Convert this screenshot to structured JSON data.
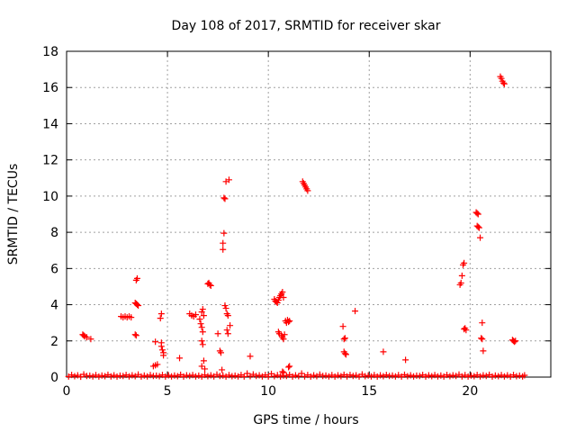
{
  "chart_data": {
    "type": "scatter",
    "title": "Day 108 of 2017, SRMTID for receiver skar",
    "xlabel": "GPS time / hours",
    "ylabel": "SRMTID / TECUs",
    "xlim": [
      0,
      24
    ],
    "ylim": [
      0,
      18
    ],
    "xticks": [
      0,
      5,
      10,
      15,
      20
    ],
    "yticks": [
      0,
      2,
      4,
      6,
      8,
      10,
      12,
      14,
      16,
      18
    ],
    "grid": true,
    "legend": "none",
    "marker": "plus",
    "color": "#ff0000",
    "series": [
      {
        "points": [
          [
            0.1,
            0.03
          ],
          [
            0.4,
            0.05
          ],
          [
            0.7,
            0.02
          ],
          [
            1.0,
            0.06
          ],
          [
            1.3,
            0.04
          ],
          [
            1.6,
            0.03
          ],
          [
            1.9,
            0.05
          ],
          [
            2.2,
            0.04
          ],
          [
            2.5,
            0.03
          ],
          [
            2.8,
            0.06
          ],
          [
            3.1,
            0.04
          ],
          [
            3.4,
            0.05
          ],
          [
            3.7,
            0.03
          ],
          [
            4.0,
            0.04
          ],
          [
            4.3,
            0.06
          ],
          [
            4.6,
            0.05
          ],
          [
            4.9,
            0.03
          ],
          [
            5.2,
            0.04
          ],
          [
            5.5,
            0.05
          ],
          [
            5.8,
            0.03
          ],
          [
            6.1,
            0.06
          ],
          [
            6.4,
            0.04
          ],
          [
            6.7,
            0.03
          ],
          [
            7.0,
            0.05
          ],
          [
            7.3,
            0.04
          ],
          [
            7.6,
            0.06
          ],
          [
            7.9,
            0.03
          ],
          [
            8.2,
            0.05
          ],
          [
            8.5,
            0.04
          ],
          [
            8.8,
            0.03
          ],
          [
            9.1,
            0.05
          ],
          [
            9.4,
            0.06
          ],
          [
            9.7,
            0.04
          ],
          [
            10.0,
            0.03
          ],
          [
            10.3,
            0.05
          ],
          [
            10.6,
            0.04
          ],
          [
            10.9,
            0.06
          ],
          [
            11.2,
            0.03
          ],
          [
            11.5,
            0.05
          ],
          [
            11.8,
            0.04
          ],
          [
            12.1,
            0.03
          ],
          [
            12.4,
            0.05
          ],
          [
            12.7,
            0.06
          ],
          [
            13.0,
            0.04
          ],
          [
            13.3,
            0.03
          ],
          [
            13.6,
            0.05
          ],
          [
            13.9,
            0.04
          ],
          [
            14.2,
            0.06
          ],
          [
            14.5,
            0.03
          ],
          [
            14.8,
            0.05
          ],
          [
            15.1,
            0.04
          ],
          [
            15.4,
            0.03
          ],
          [
            15.7,
            0.05
          ],
          [
            16.0,
            0.06
          ],
          [
            16.3,
            0.04
          ],
          [
            16.6,
            0.03
          ],
          [
            16.9,
            0.05
          ],
          [
            17.2,
            0.04
          ],
          [
            17.5,
            0.06
          ],
          [
            17.8,
            0.03
          ],
          [
            18.1,
            0.05
          ],
          [
            18.4,
            0.04
          ],
          [
            18.7,
            0.03
          ],
          [
            19.0,
            0.05
          ],
          [
            19.3,
            0.06
          ],
          [
            19.6,
            0.04
          ],
          [
            19.9,
            0.03
          ],
          [
            20.2,
            0.05
          ],
          [
            20.5,
            0.04
          ],
          [
            20.8,
            0.06
          ],
          [
            21.1,
            0.03
          ],
          [
            21.4,
            0.05
          ],
          [
            21.7,
            0.04
          ],
          [
            22.0,
            0.03
          ],
          [
            22.3,
            0.05
          ],
          [
            22.6,
            0.04
          ],
          [
            0.25,
            0.12
          ],
          [
            0.55,
            0.1
          ],
          [
            0.85,
            0.15
          ],
          [
            1.15,
            0.08
          ],
          [
            1.45,
            0.11
          ],
          [
            1.75,
            0.09
          ],
          [
            2.05,
            0.13
          ],
          [
            2.35,
            0.1
          ],
          [
            2.65,
            0.08
          ],
          [
            2.95,
            0.12
          ],
          [
            3.25,
            0.1
          ],
          [
            3.55,
            0.14
          ],
          [
            3.85,
            0.09
          ],
          [
            4.15,
            0.11
          ],
          [
            4.45,
            0.08
          ],
          [
            4.75,
            0.12
          ],
          [
            5.05,
            0.1
          ],
          [
            5.35,
            0.09
          ],
          [
            5.65,
            0.13
          ],
          [
            5.95,
            0.1
          ],
          [
            6.25,
            0.11
          ],
          [
            6.55,
            0.08
          ],
          [
            6.85,
            0.12
          ],
          [
            7.15,
            0.1
          ],
          [
            7.45,
            0.14
          ],
          [
            7.75,
            0.09
          ],
          [
            8.05,
            0.11
          ],
          [
            8.35,
            0.08
          ],
          [
            8.65,
            0.12
          ],
          [
            8.95,
            0.2
          ],
          [
            9.25,
            0.15
          ],
          [
            9.55,
            0.1
          ],
          [
            9.85,
            0.12
          ],
          [
            10.15,
            0.18
          ],
          [
            10.45,
            0.11
          ],
          [
            10.75,
            0.09
          ],
          [
            11.05,
            0.13
          ],
          [
            11.35,
            0.1
          ],
          [
            11.65,
            0.2
          ],
          [
            11.95,
            0.12
          ],
          [
            12.25,
            0.1
          ],
          [
            12.55,
            0.14
          ],
          [
            12.85,
            0.09
          ],
          [
            13.15,
            0.11
          ],
          [
            13.45,
            0.1
          ],
          [
            13.75,
            0.13
          ],
          [
            14.05,
            0.12
          ],
          [
            14.35,
            0.1
          ],
          [
            14.65,
            0.15
          ],
          [
            14.95,
            0.09
          ],
          [
            15.25,
            0.11
          ],
          [
            15.55,
            0.1
          ],
          [
            15.85,
            0.12
          ],
          [
            16.15,
            0.09
          ],
          [
            16.45,
            0.11
          ],
          [
            16.75,
            0.13
          ],
          [
            17.05,
            0.1
          ],
          [
            17.35,
            0.08
          ],
          [
            17.65,
            0.12
          ],
          [
            17.95,
            0.1
          ],
          [
            18.25,
            0.11
          ],
          [
            18.55,
            0.09
          ],
          [
            18.85,
            0.12
          ],
          [
            19.15,
            0.1
          ],
          [
            19.45,
            0.14
          ],
          [
            19.75,
            0.11
          ],
          [
            20.05,
            0.09
          ],
          [
            20.35,
            0.12
          ],
          [
            20.65,
            0.1
          ],
          [
            20.95,
            0.13
          ],
          [
            21.25,
            0.09
          ],
          [
            21.55,
            0.11
          ],
          [
            21.85,
            0.1
          ],
          [
            22.15,
            0.12
          ],
          [
            22.45,
            0.08
          ],
          [
            22.7,
            0.1
          ],
          [
            0.8,
            2.35
          ],
          [
            0.85,
            2.3
          ],
          [
            0.9,
            2.25
          ],
          [
            1.0,
            2.2
          ],
          [
            1.2,
            2.1
          ],
          [
            2.7,
            3.35
          ],
          [
            2.8,
            3.3
          ],
          [
            2.9,
            3.35
          ],
          [
            3.0,
            3.3
          ],
          [
            3.1,
            3.35
          ],
          [
            3.2,
            3.3
          ],
          [
            3.4,
            4.1
          ],
          [
            3.45,
            4.05
          ],
          [
            3.5,
            4.0
          ],
          [
            3.55,
            3.95
          ],
          [
            3.45,
            5.35
          ],
          [
            3.5,
            5.45
          ],
          [
            3.4,
            2.35
          ],
          [
            3.45,
            2.3
          ],
          [
            4.3,
            0.6
          ],
          [
            4.4,
            0.65
          ],
          [
            4.5,
            0.7
          ],
          [
            4.4,
            1.95
          ],
          [
            4.7,
            1.9
          ],
          [
            4.7,
            1.7
          ],
          [
            4.75,
            1.5
          ],
          [
            4.8,
            1.35
          ],
          [
            4.8,
            1.2
          ],
          [
            4.65,
            3.25
          ],
          [
            4.7,
            3.5
          ],
          [
            5.6,
            1.05
          ],
          [
            6.1,
            3.5
          ],
          [
            6.2,
            3.4
          ],
          [
            6.3,
            3.35
          ],
          [
            6.4,
            3.45
          ],
          [
            6.6,
            3.2
          ],
          [
            6.65,
            2.95
          ],
          [
            6.7,
            2.75
          ],
          [
            6.75,
            2.5
          ],
          [
            6.7,
            3.6
          ],
          [
            6.75,
            3.75
          ],
          [
            6.8,
            3.4
          ],
          [
            6.7,
            2.0
          ],
          [
            6.75,
            1.8
          ],
          [
            6.8,
            0.9
          ],
          [
            6.7,
            0.6
          ],
          [
            6.85,
            0.45
          ],
          [
            7.0,
            5.15
          ],
          [
            7.05,
            5.2
          ],
          [
            7.1,
            5.1
          ],
          [
            7.15,
            5.05
          ],
          [
            7.5,
            2.4
          ],
          [
            7.6,
            1.45
          ],
          [
            7.65,
            1.35
          ],
          [
            7.7,
            0.4
          ],
          [
            7.75,
            7.05
          ],
          [
            7.75,
            7.4
          ],
          [
            7.8,
            7.95
          ],
          [
            7.8,
            9.9
          ],
          [
            7.85,
            9.85
          ],
          [
            7.9,
            10.8
          ],
          [
            8.05,
            10.9
          ],
          [
            7.85,
            3.95
          ],
          [
            7.9,
            3.8
          ],
          [
            7.95,
            3.5
          ],
          [
            8.0,
            3.4
          ],
          [
            7.95,
            2.6
          ],
          [
            8.0,
            2.4
          ],
          [
            8.1,
            2.85
          ],
          [
            9.1,
            1.15
          ],
          [
            10.3,
            4.3
          ],
          [
            10.35,
            4.2
          ],
          [
            10.4,
            4.15
          ],
          [
            10.45,
            4.1
          ],
          [
            10.5,
            4.25
          ],
          [
            10.55,
            4.4
          ],
          [
            10.6,
            4.5
          ],
          [
            10.65,
            4.6
          ],
          [
            10.7,
            4.7
          ],
          [
            10.75,
            4.4
          ],
          [
            10.5,
            2.5
          ],
          [
            10.55,
            2.4
          ],
          [
            10.65,
            2.3
          ],
          [
            10.7,
            2.2
          ],
          [
            10.75,
            2.1
          ],
          [
            10.8,
            2.35
          ],
          [
            10.7,
            0.3
          ],
          [
            10.75,
            0.25
          ],
          [
            10.85,
            3.1
          ],
          [
            10.9,
            3.0
          ],
          [
            10.95,
            3.15
          ],
          [
            11.0,
            3.05
          ],
          [
            11.05,
            3.1
          ],
          [
            11.0,
            0.55
          ],
          [
            11.05,
            0.6
          ],
          [
            11.7,
            10.8
          ],
          [
            11.75,
            10.7
          ],
          [
            11.8,
            10.6
          ],
          [
            11.85,
            10.5
          ],
          [
            11.9,
            10.4
          ],
          [
            11.95,
            10.3
          ],
          [
            13.7,
            2.8
          ],
          [
            13.75,
            2.1
          ],
          [
            13.8,
            2.15
          ],
          [
            13.75,
            1.4
          ],
          [
            13.8,
            1.3
          ],
          [
            13.85,
            1.25
          ],
          [
            14.3,
            3.65
          ],
          [
            15.7,
            1.4
          ],
          [
            16.8,
            0.95
          ],
          [
            19.5,
            5.1
          ],
          [
            19.55,
            5.2
          ],
          [
            19.6,
            5.6
          ],
          [
            19.65,
            6.2
          ],
          [
            19.7,
            6.3
          ],
          [
            19.7,
            2.65
          ],
          [
            19.75,
            2.7
          ],
          [
            19.8,
            2.6
          ],
          [
            20.3,
            9.1
          ],
          [
            20.35,
            9.05
          ],
          [
            20.4,
            9.0
          ],
          [
            20.35,
            8.35
          ],
          [
            20.4,
            8.3
          ],
          [
            20.45,
            8.25
          ],
          [
            20.5,
            7.7
          ],
          [
            20.55,
            2.15
          ],
          [
            20.6,
            2.1
          ],
          [
            20.6,
            3.0
          ],
          [
            20.65,
            1.45
          ],
          [
            21.5,
            16.6
          ],
          [
            21.55,
            16.5
          ],
          [
            21.6,
            16.35
          ],
          [
            21.65,
            16.25
          ],
          [
            21.7,
            16.2
          ],
          [
            22.1,
            2.05
          ],
          [
            22.15,
            2.0
          ],
          [
            22.2,
            1.95
          ],
          [
            22.25,
            2.0
          ]
        ]
      }
    ]
  }
}
